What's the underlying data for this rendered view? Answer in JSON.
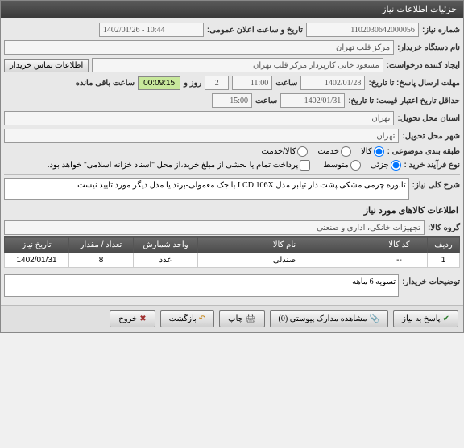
{
  "window_title": "جزئیات اطلاعات نیاز",
  "fields": {
    "need_number_label": "شماره نیاز:",
    "need_number": "1102030642000056",
    "public_datetime_label": "تاریخ و ساعت اعلان عمومی:",
    "public_datetime": "1402/01/26 - 10:44",
    "buyer_label": "نام دستگاه خریدار:",
    "buyer": "مرکز قلب تهران",
    "creator_label": "ایجاد کننده درخواست:",
    "creator": "مسعود خانی کارپرداز مرکز قلب تهران",
    "contact_btn": "اطلاعات تماس خریدار",
    "deadline_label": "مهلت ارسال پاسخ: تا تاریخ:",
    "deadline_date": "1402/01/28",
    "time_label": "ساعت",
    "deadline_time": "11:00",
    "days_label": "روز و",
    "days_remain": "2",
    "countdown": "00:09:15",
    "remain_label": "ساعت باقی مانده",
    "validity_label": "حداقل تاریخ اعتبار قیمت: تا تاریخ:",
    "validity_date": "1402/01/31",
    "validity_time": "15:00",
    "delivery_city_label": "استان محل تحویل:",
    "delivery_city": "تهران",
    "delivery_province_label": "شهر محل تحویل:",
    "delivery_province": "تهران",
    "category_label": "طبقه بندی موضوعی :",
    "type_label": "نوع فرآیند خرید :",
    "payment_note": "پرداخت تمام یا بخشی از مبلغ خرید،از محل \"اسناد خزانه اسلامی\" خواهد بود.",
    "description_label": "شرح کلی نیاز:",
    "description": "تابوره چرمی مشکی پشت دار تیلبر مدل LCD 106X با جک معمولی-برند یا مدل دیگر مورد تایید نیست",
    "items_header": "اطلاعات کالاهای مورد نیاز",
    "group_label": "گروه کالا:",
    "group": "تجهیزات خانگی، اداری و صنعتی",
    "buyer_notes_label": "توضیحات خریدار:",
    "buyer_notes": "تسویه 6 ماهه"
  },
  "categories": {
    "goods": "کالا",
    "service": "خدمت",
    "both": "کالا/خدمت"
  },
  "process_types": {
    "partial": "جزئی",
    "medium": "متوسط"
  },
  "table": {
    "headers": {
      "row": "ردیف",
      "code": "کد کالا",
      "name": "نام کالا",
      "unit": "واحد شمارش",
      "qty": "تعداد / مقدار",
      "date": "تاریخ نیاز"
    },
    "rows": [
      {
        "row": "1",
        "code": "--",
        "name": "صندلی",
        "unit": "عدد",
        "qty": "8",
        "date": "1402/01/31"
      }
    ]
  },
  "buttons": {
    "reply": "پاسخ به نیاز",
    "attachments": "مشاهده مدارک پیوستی (0)",
    "print": "چاپ",
    "back": "بازگشت",
    "exit": "خروج"
  }
}
